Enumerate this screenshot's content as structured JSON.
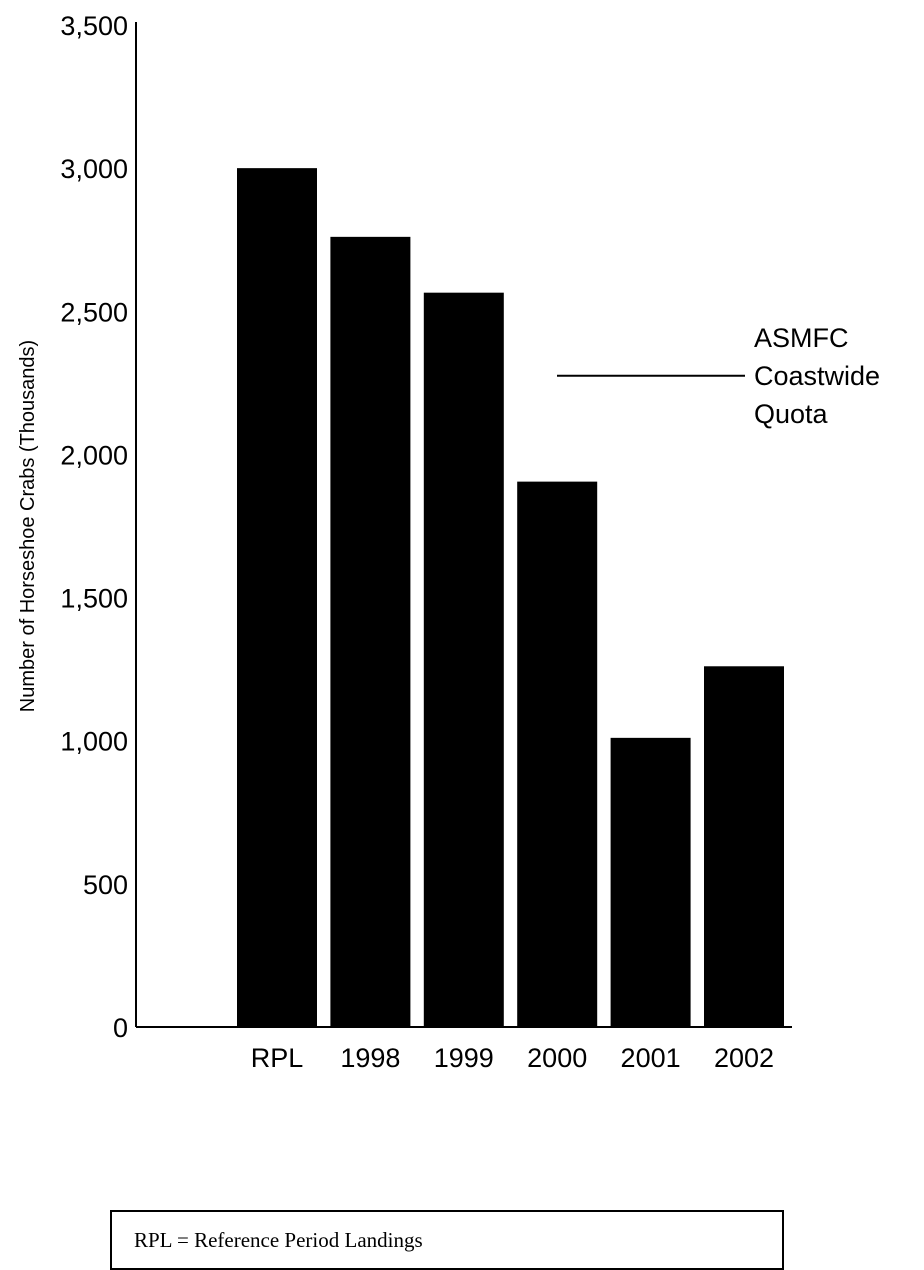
{
  "chart_data": {
    "type": "bar",
    "categories": [
      "RPL",
      "1998",
      "1999",
      "2000",
      "2001",
      "2002"
    ],
    "values": [
      3000,
      2760,
      2565,
      1905,
      1010,
      1260
    ],
    "ylabel": "Number of Horseshoe Crabs (Thousands)",
    "xlabel": "",
    "ylim": [
      0,
      3500
    ],
    "yticks": [
      0,
      500,
      1000,
      1500,
      2000,
      2500,
      3000,
      3500
    ],
    "ytick_labels": [
      "0",
      "500",
      "1,000",
      "1,500",
      "2,000",
      "2,500",
      "3,000",
      "3,500"
    ],
    "bar_color": "#000000",
    "grid": false,
    "annotation": {
      "lines": [
        "ASMFC",
        "Coastwide",
        "Quota"
      ],
      "y_value": 2275
    }
  },
  "footnote": "RPL = Reference Period Landings"
}
